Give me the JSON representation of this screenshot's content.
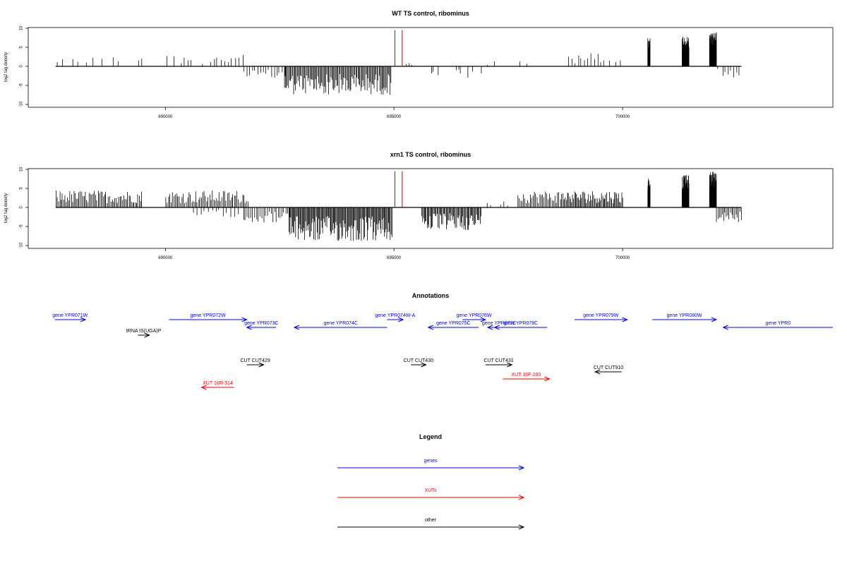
{
  "chart_data": [
    {
      "type": "bar",
      "title": "WT TS control, ribominus",
      "xlabel": "",
      "ylabel": "log2 tag density",
      "ylim": [
        -10,
        10
      ],
      "yticks": [
        -10,
        -5,
        0,
        5,
        10
      ],
      "xlim": [
        687000,
        704600
      ],
      "xticks": [
        690000,
        695000,
        700000
      ],
      "grid": false,
      "features": [
        {
          "kind": "plus-sparse",
          "start": 687600,
          "end": 689500,
          "max": 2.5,
          "step": 110
        },
        {
          "kind": "plus-sparse",
          "start": 690000,
          "end": 691700,
          "max": 3.0,
          "step": 80
        },
        {
          "kind": "minus-dense",
          "start": 691700,
          "end": 692600,
          "max": 3.5,
          "step": 60
        },
        {
          "kind": "minus-dense",
          "start": 692600,
          "end": 694950,
          "max": 7.5,
          "step": 22
        },
        {
          "kind": "red-spike",
          "position": 695020,
          "value": 9.5
        },
        {
          "kind": "red-spike",
          "position": 695180,
          "value": 9.5
        },
        {
          "kind": "plus-sparse",
          "start": 695250,
          "end": 695400,
          "max": 1.0,
          "step": 60
        },
        {
          "kind": "minus-sparse",
          "start": 695700,
          "end": 697000,
          "max": 3.5,
          "step": 50
        },
        {
          "kind": "plus-sparse",
          "start": 697000,
          "end": 698000,
          "max": 1.5,
          "step": 180
        },
        {
          "kind": "plus-sparse",
          "start": 698800,
          "end": 700000,
          "max": 3.5,
          "step": 70
        },
        {
          "kind": "plus-peak",
          "start": 700550,
          "end": 700600,
          "max": 7.5,
          "step": 5
        },
        {
          "kind": "plus-peak",
          "start": 701300,
          "end": 701450,
          "max": 8.0,
          "step": 6
        },
        {
          "kind": "plus-peak",
          "start": 701900,
          "end": 702050,
          "max": 9.0,
          "step": 5
        },
        {
          "kind": "minus-sparse",
          "start": 702050,
          "end": 702600,
          "max": 3.0,
          "step": 60
        }
      ]
    },
    {
      "type": "bar",
      "title": "xrn1 TS control, ribominus",
      "xlabel": "",
      "ylabel": "log2 tag density",
      "ylim": [
        -10,
        10
      ],
      "yticks": [
        -10,
        -5,
        0,
        5,
        10
      ],
      "xlim": [
        687000,
        704600
      ],
      "xticks": [
        690000,
        695000,
        700000
      ],
      "grid": false,
      "features": [
        {
          "kind": "plus-dense",
          "start": 687600,
          "end": 689500,
          "max": 4.5,
          "step": 28
        },
        {
          "kind": "plus-dense",
          "start": 690000,
          "end": 691800,
          "max": 4.5,
          "step": 30
        },
        {
          "kind": "minus-dense",
          "start": 690600,
          "end": 691600,
          "max": 2.5,
          "step": 80
        },
        {
          "kind": "minus-dense",
          "start": 691700,
          "end": 692700,
          "max": 4.0,
          "step": 40
        },
        {
          "kind": "minus-dense",
          "start": 692700,
          "end": 694950,
          "max": 9.0,
          "step": 18
        },
        {
          "kind": "red-spike",
          "position": 695020,
          "value": 9.5
        },
        {
          "kind": "red-spike",
          "position": 695180,
          "value": 9.5
        },
        {
          "kind": "minus-dense",
          "start": 695600,
          "end": 696900,
          "max": 6.0,
          "step": 20
        },
        {
          "kind": "plus-sparse",
          "start": 697000,
          "end": 697500,
          "max": 2.0,
          "step": 80
        },
        {
          "kind": "plus-dense",
          "start": 697700,
          "end": 698700,
          "max": 4.5,
          "step": 30
        },
        {
          "kind": "plus-dense",
          "start": 698700,
          "end": 700000,
          "max": 4.5,
          "step": 22
        },
        {
          "kind": "plus-peak",
          "start": 700550,
          "end": 700600,
          "max": 8.0,
          "step": 5
        },
        {
          "kind": "plus-peak",
          "start": 701300,
          "end": 701450,
          "max": 8.5,
          "step": 6
        },
        {
          "kind": "plus-peak",
          "start": 701900,
          "end": 702050,
          "max": 9.5,
          "step": 5
        },
        {
          "kind": "minus-dense",
          "start": 702050,
          "end": 702600,
          "max": 4.0,
          "step": 30
        }
      ]
    }
  ],
  "annotations": {
    "title": "Annotations",
    "colors": {
      "gene": "#0000ff",
      "xut": "#ff0000",
      "other": "#000000"
    },
    "items": [
      {
        "label": "gene YPR071W",
        "type": "gene",
        "start": 687580,
        "end": 688250,
        "strand": "+",
        "row": 0
      },
      {
        "label": "gene YPR072W",
        "type": "gene",
        "start": 690080,
        "end": 691780,
        "strand": "+",
        "row": 0
      },
      {
        "label": "gene YPR073C",
        "type": "gene",
        "start": 691780,
        "end": 692420,
        "strand": "-",
        "row": 1
      },
      {
        "label": "gene YPR074C",
        "type": "gene",
        "start": 692820,
        "end": 694850,
        "strand": "-",
        "row": 1
      },
      {
        "label": "gene YPR074W-A",
        "type": "gene",
        "start": 694850,
        "end": 695200,
        "strand": "+",
        "row": 0
      },
      {
        "label": "gene YPR075C",
        "type": "gene",
        "start": 695750,
        "end": 696850,
        "strand": "-",
        "row": 1
      },
      {
        "label": "gene YPR076W",
        "type": "gene",
        "start": 696500,
        "end": 697000,
        "strand": "+",
        "row": 0
      },
      {
        "label": "gene YPR077C",
        "type": "gene",
        "start": 697050,
        "end": 697550,
        "strand": "-",
        "row": 1
      },
      {
        "label": "gene YPR078C",
        "type": "gene",
        "start": 697200,
        "end": 698350,
        "strand": "-",
        "row": 1
      },
      {
        "label": "gene YPR079W",
        "type": "gene",
        "start": 698950,
        "end": 700100,
        "strand": "+",
        "row": 0
      },
      {
        "label": "gene YPR080W",
        "type": "gene",
        "start": 700650,
        "end": 702050,
        "strand": "+",
        "row": 0
      },
      {
        "label": "gene YPR0",
        "type": "gene",
        "start": 702200,
        "end": 704600,
        "strand": "-",
        "row": 1
      },
      {
        "label": "tRNA tS(UGA)P",
        "type": "other",
        "start": 689400,
        "end": 689650,
        "strand": "+",
        "row": 2
      },
      {
        "label": "CUT CUT429",
        "type": "other",
        "start": 691780,
        "end": 692150,
        "strand": "+",
        "row": 3
      },
      {
        "label": "CUT CUT430",
        "type": "other",
        "start": 695370,
        "end": 695700,
        "strand": "+",
        "row": 3
      },
      {
        "label": "CUT CUT431",
        "type": "other",
        "start": 697000,
        "end": 697580,
        "strand": "+",
        "row": 3
      },
      {
        "label": "CUT CUT910",
        "type": "other",
        "start": 699400,
        "end": 699980,
        "strand": "-",
        "row": 4
      },
      {
        "label": "XUT 16F-280",
        "type": "xut",
        "start": 697380,
        "end": 698400,
        "strand": "+",
        "row": 5
      },
      {
        "label": "XUT 16R-314",
        "type": "xut",
        "start": 690790,
        "end": 691500,
        "strand": "-",
        "row": 6
      }
    ]
  },
  "legend": {
    "title": "Legend",
    "items": [
      {
        "label": "genes",
        "color": "#0000ff"
      },
      {
        "label": "XUTs",
        "color": "#ff0000"
      },
      {
        "label": "other",
        "color": "#000000"
      }
    ]
  }
}
